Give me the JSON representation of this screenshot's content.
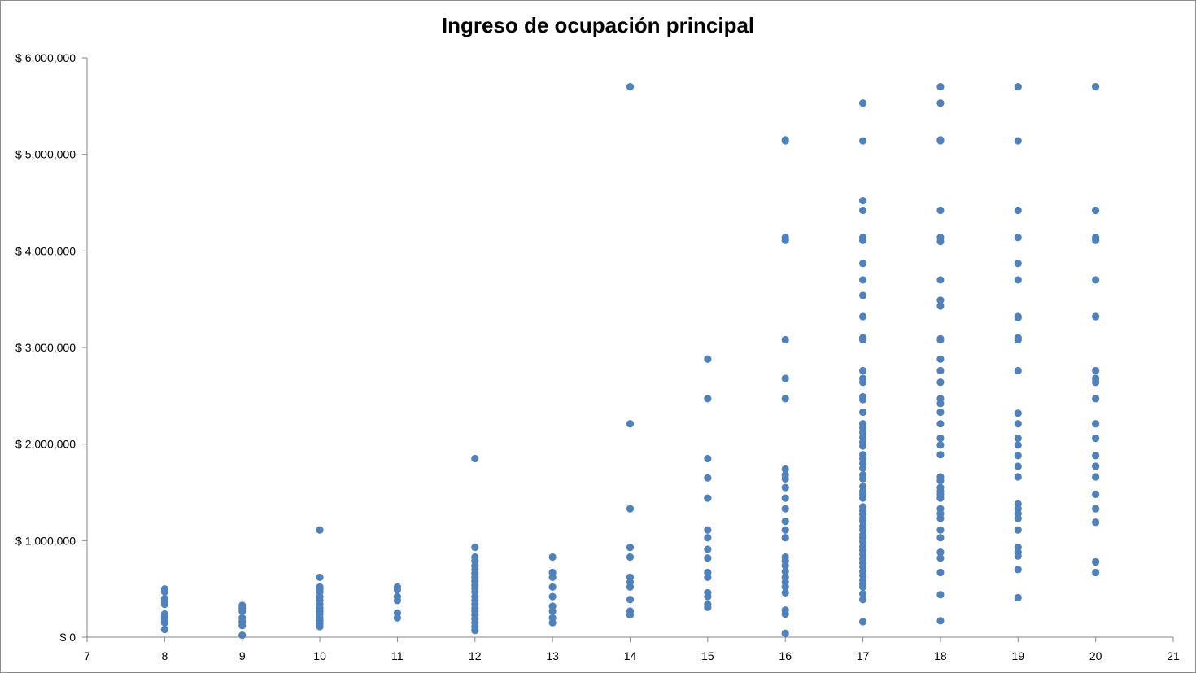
{
  "chart_data": {
    "type": "scatter",
    "title": "Ingreso de ocupación principal",
    "xlabel": "",
    "ylabel": "",
    "xlim": [
      7,
      21
    ],
    "ylim": [
      0,
      6000000
    ],
    "x_ticks": [
      "7",
      "8",
      "9",
      "10",
      "11",
      "12",
      "13",
      "14",
      "15",
      "16",
      "17",
      "18",
      "19",
      "20",
      "21"
    ],
    "y_ticks": [
      "$ 0",
      "$ 1,000,000",
      "$ 2,000,000",
      "$ 3,000,000",
      "$ 4,000,000",
      "$ 5,000,000",
      "$ 6,000,000"
    ],
    "grid": false,
    "legend": "none",
    "marker_color": "#4f81bd",
    "series": [
      {
        "points": [
          [
            8,
            500000
          ],
          [
            8,
            470000
          ],
          [
            8,
            400000
          ],
          [
            8,
            370000
          ],
          [
            8,
            340000
          ],
          [
            8,
            240000
          ],
          [
            8,
            210000
          ],
          [
            8,
            180000
          ],
          [
            8,
            150000
          ],
          [
            8,
            80000
          ],
          [
            9,
            330000
          ],
          [
            9,
            300000
          ],
          [
            9,
            270000
          ],
          [
            9,
            200000
          ],
          [
            9,
            160000
          ],
          [
            9,
            120000
          ],
          [
            9,
            20000
          ],
          [
            10,
            1110000
          ],
          [
            10,
            620000
          ],
          [
            10,
            520000
          ],
          [
            10,
            500000
          ],
          [
            10,
            470000
          ],
          [
            10,
            420000
          ],
          [
            10,
            380000
          ],
          [
            10,
            340000
          ],
          [
            10,
            300000
          ],
          [
            10,
            270000
          ],
          [
            10,
            240000
          ],
          [
            10,
            200000
          ],
          [
            10,
            170000
          ],
          [
            10,
            140000
          ],
          [
            10,
            110000
          ],
          [
            11,
            520000
          ],
          [
            11,
            490000
          ],
          [
            11,
            420000
          ],
          [
            11,
            380000
          ],
          [
            11,
            250000
          ],
          [
            11,
            200000
          ],
          [
            12,
            1850000
          ],
          [
            12,
            930000
          ],
          [
            12,
            830000
          ],
          [
            12,
            790000
          ],
          [
            12,
            740000
          ],
          [
            12,
            700000
          ],
          [
            12,
            660000
          ],
          [
            12,
            620000
          ],
          [
            12,
            580000
          ],
          [
            12,
            540000
          ],
          [
            12,
            510000
          ],
          [
            12,
            470000
          ],
          [
            12,
            420000
          ],
          [
            12,
            380000
          ],
          [
            12,
            340000
          ],
          [
            12,
            300000
          ],
          [
            12,
            270000
          ],
          [
            12,
            230000
          ],
          [
            12,
            190000
          ],
          [
            12,
            150000
          ],
          [
            12,
            110000
          ],
          [
            12,
            70000
          ],
          [
            13,
            830000
          ],
          [
            13,
            670000
          ],
          [
            13,
            620000
          ],
          [
            13,
            520000
          ],
          [
            13,
            420000
          ],
          [
            13,
            320000
          ],
          [
            13,
            270000
          ],
          [
            13,
            200000
          ],
          [
            13,
            150000
          ],
          [
            14,
            5700000
          ],
          [
            14,
            2210000
          ],
          [
            14,
            1330000
          ],
          [
            14,
            930000
          ],
          [
            14,
            830000
          ],
          [
            14,
            620000
          ],
          [
            14,
            570000
          ],
          [
            14,
            520000
          ],
          [
            14,
            390000
          ],
          [
            14,
            270000
          ],
          [
            14,
            230000
          ],
          [
            15,
            2880000
          ],
          [
            15,
            2470000
          ],
          [
            15,
            1850000
          ],
          [
            15,
            1650000
          ],
          [
            15,
            1440000
          ],
          [
            15,
            1110000
          ],
          [
            15,
            1030000
          ],
          [
            15,
            910000
          ],
          [
            15,
            820000
          ],
          [
            15,
            670000
          ],
          [
            15,
            620000
          ],
          [
            15,
            460000
          ],
          [
            15,
            420000
          ],
          [
            15,
            340000
          ],
          [
            15,
            310000
          ],
          [
            16,
            5150000
          ],
          [
            16,
            5140000
          ],
          [
            16,
            4140000
          ],
          [
            16,
            4110000
          ],
          [
            16,
            3080000
          ],
          [
            16,
            2680000
          ],
          [
            16,
            2470000
          ],
          [
            16,
            1740000
          ],
          [
            16,
            1680000
          ],
          [
            16,
            1640000
          ],
          [
            16,
            1550000
          ],
          [
            16,
            1440000
          ],
          [
            16,
            1330000
          ],
          [
            16,
            1200000
          ],
          [
            16,
            1110000
          ],
          [
            16,
            1030000
          ],
          [
            16,
            830000
          ],
          [
            16,
            790000
          ],
          [
            16,
            740000
          ],
          [
            16,
            680000
          ],
          [
            16,
            620000
          ],
          [
            16,
            570000
          ],
          [
            16,
            520000
          ],
          [
            16,
            460000
          ],
          [
            16,
            280000
          ],
          [
            16,
            240000
          ],
          [
            16,
            40000
          ],
          [
            17,
            5530000
          ],
          [
            17,
            5140000
          ],
          [
            17,
            4520000
          ],
          [
            17,
            4420000
          ],
          [
            17,
            4140000
          ],
          [
            17,
            4110000
          ],
          [
            17,
            3870000
          ],
          [
            17,
            3700000
          ],
          [
            17,
            3540000
          ],
          [
            17,
            3320000
          ],
          [
            17,
            3100000
          ],
          [
            17,
            3080000
          ],
          [
            17,
            2760000
          ],
          [
            17,
            2680000
          ],
          [
            17,
            2640000
          ],
          [
            17,
            2490000
          ],
          [
            17,
            2460000
          ],
          [
            17,
            2330000
          ],
          [
            17,
            2210000
          ],
          [
            17,
            2170000
          ],
          [
            17,
            2120000
          ],
          [
            17,
            2070000
          ],
          [
            17,
            2020000
          ],
          [
            17,
            1980000
          ],
          [
            17,
            1890000
          ],
          [
            17,
            1850000
          ],
          [
            17,
            1800000
          ],
          [
            17,
            1750000
          ],
          [
            17,
            1680000
          ],
          [
            17,
            1640000
          ],
          [
            17,
            1560000
          ],
          [
            17,
            1510000
          ],
          [
            17,
            1480000
          ],
          [
            17,
            1440000
          ],
          [
            17,
            1350000
          ],
          [
            17,
            1310000
          ],
          [
            17,
            1270000
          ],
          [
            17,
            1230000
          ],
          [
            17,
            1200000
          ],
          [
            17,
            1150000
          ],
          [
            17,
            1110000
          ],
          [
            17,
            1060000
          ],
          [
            17,
            1030000
          ],
          [
            17,
            990000
          ],
          [
            17,
            940000
          ],
          [
            17,
            900000
          ],
          [
            17,
            860000
          ],
          [
            17,
            810000
          ],
          [
            17,
            770000
          ],
          [
            17,
            730000
          ],
          [
            17,
            680000
          ],
          [
            17,
            640000
          ],
          [
            17,
            590000
          ],
          [
            17,
            550000
          ],
          [
            17,
            520000
          ],
          [
            17,
            450000
          ],
          [
            17,
            390000
          ],
          [
            17,
            160000
          ],
          [
            18,
            5700000
          ],
          [
            18,
            5530000
          ],
          [
            18,
            5150000
          ],
          [
            18,
            5140000
          ],
          [
            18,
            4420000
          ],
          [
            18,
            4140000
          ],
          [
            18,
            4100000
          ],
          [
            18,
            3700000
          ],
          [
            18,
            3490000
          ],
          [
            18,
            3430000
          ],
          [
            18,
            3090000
          ],
          [
            18,
            3080000
          ],
          [
            18,
            2880000
          ],
          [
            18,
            2760000
          ],
          [
            18,
            2640000
          ],
          [
            18,
            2470000
          ],
          [
            18,
            2420000
          ],
          [
            18,
            2330000
          ],
          [
            18,
            2210000
          ],
          [
            18,
            2060000
          ],
          [
            18,
            1990000
          ],
          [
            18,
            1890000
          ],
          [
            18,
            1660000
          ],
          [
            18,
            1620000
          ],
          [
            18,
            1550000
          ],
          [
            18,
            1510000
          ],
          [
            18,
            1480000
          ],
          [
            18,
            1440000
          ],
          [
            18,
            1330000
          ],
          [
            18,
            1280000
          ],
          [
            18,
            1230000
          ],
          [
            18,
            1110000
          ],
          [
            18,
            1030000
          ],
          [
            18,
            880000
          ],
          [
            18,
            820000
          ],
          [
            18,
            670000
          ],
          [
            18,
            440000
          ],
          [
            18,
            170000
          ],
          [
            19,
            5700000
          ],
          [
            19,
            5140000
          ],
          [
            19,
            4420000
          ],
          [
            19,
            4140000
          ],
          [
            19,
            3870000
          ],
          [
            19,
            3700000
          ],
          [
            19,
            3320000
          ],
          [
            19,
            3310000
          ],
          [
            19,
            3100000
          ],
          [
            19,
            3080000
          ],
          [
            19,
            2760000
          ],
          [
            19,
            2320000
          ],
          [
            19,
            2210000
          ],
          [
            19,
            2060000
          ],
          [
            19,
            1990000
          ],
          [
            19,
            1880000
          ],
          [
            19,
            1770000
          ],
          [
            19,
            1660000
          ],
          [
            19,
            1380000
          ],
          [
            19,
            1330000
          ],
          [
            19,
            1280000
          ],
          [
            19,
            1230000
          ],
          [
            19,
            1110000
          ],
          [
            19,
            930000
          ],
          [
            19,
            880000
          ],
          [
            19,
            840000
          ],
          [
            19,
            700000
          ],
          [
            19,
            410000
          ],
          [
            20,
            5700000
          ],
          [
            20,
            4420000
          ],
          [
            20,
            4140000
          ],
          [
            20,
            4110000
          ],
          [
            20,
            3700000
          ],
          [
            20,
            3320000
          ],
          [
            20,
            2760000
          ],
          [
            20,
            2680000
          ],
          [
            20,
            2640000
          ],
          [
            20,
            2470000
          ],
          [
            20,
            2210000
          ],
          [
            20,
            2060000
          ],
          [
            20,
            1880000
          ],
          [
            20,
            1770000
          ],
          [
            20,
            1660000
          ],
          [
            20,
            1480000
          ],
          [
            20,
            1330000
          ],
          [
            20,
            1190000
          ],
          [
            20,
            780000
          ],
          [
            20,
            670000
          ]
        ]
      }
    ]
  }
}
